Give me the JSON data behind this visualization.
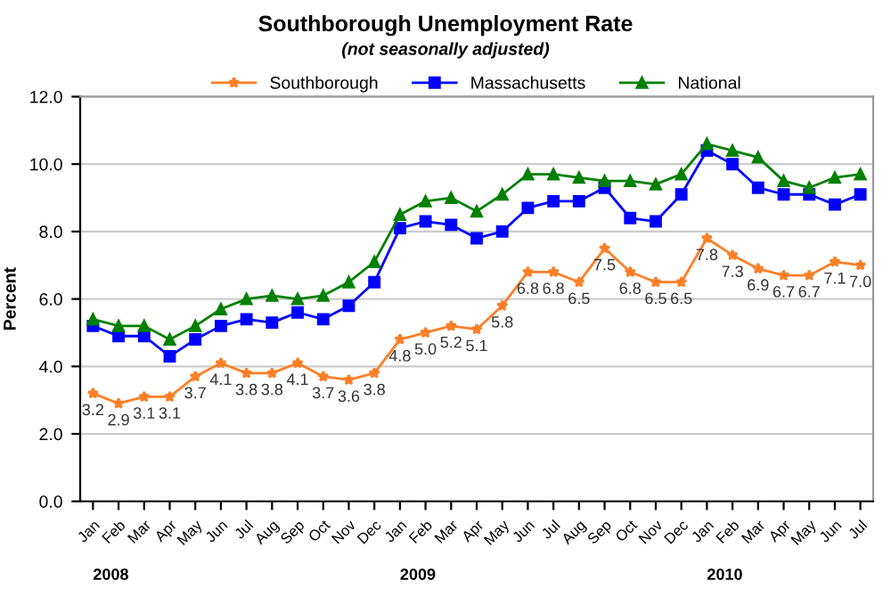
{
  "chart_data": {
    "type": "line",
    "title": "Southborough Unemployment Rate",
    "subtitle": "(not seasonally adjusted)",
    "ylabel": "Percent",
    "categories": [
      "Jan",
      "Feb",
      "Mar",
      "Apr",
      "May",
      "Jun",
      "Jul",
      "Aug",
      "Sep",
      "Oct",
      "Nov",
      "Dec",
      "Jan",
      "Feb",
      "Mar",
      "Apr",
      "May",
      "Jun",
      "Jul",
      "Aug",
      "Sep",
      "Oct",
      "Nov",
      "Dec",
      "Jan",
      "Feb",
      "Mar",
      "Apr",
      "May",
      "Jun",
      "Jul"
    ],
    "annotations": [
      "2008",
      "2009",
      "2010"
    ],
    "series": [
      {
        "name": "Southborough",
        "color": "#ff7f27",
        "marker": "star",
        "values": [
          3.2,
          2.9,
          3.1,
          3.1,
          3.7,
          4.1,
          3.8,
          3.8,
          4.1,
          3.7,
          3.6,
          3.8,
          4.8,
          5.0,
          5.2,
          5.1,
          5.8,
          6.8,
          6.8,
          6.5,
          7.5,
          6.8,
          6.5,
          6.5,
          7.8,
          7.3,
          6.9,
          6.7,
          6.7,
          7.1,
          7.0
        ],
        "value_labels": [
          "3.2",
          "2.9",
          "3.1",
          "3.1",
          "3.7",
          "4.1",
          "3.8",
          "3.8",
          "4.1",
          "3.7",
          "3.6",
          "3.8",
          "4.8",
          "5.0",
          "5.2",
          "5.1",
          "5.8",
          "6.8",
          "6.8",
          "6.5",
          "7.5",
          "6.8",
          "6.5",
          "6.5",
          "7.8",
          "7.3",
          "6.9",
          "6.7",
          "6.7",
          "7.1",
          "7.0"
        ]
      },
      {
        "name": "Massachusetts",
        "color": "#0000ff",
        "marker": "square",
        "values": [
          5.2,
          4.9,
          4.9,
          4.3,
          4.8,
          5.2,
          5.4,
          5.3,
          5.6,
          5.4,
          5.8,
          6.5,
          8.1,
          8.3,
          8.2,
          7.8,
          8.0,
          8.7,
          8.9,
          8.9,
          9.3,
          8.4,
          8.3,
          9.1,
          10.4,
          10.0,
          9.3,
          9.1,
          9.1,
          8.8,
          9.1
        ]
      },
      {
        "name": "National",
        "color": "#008000",
        "marker": "triangle",
        "values": [
          5.4,
          5.2,
          5.2,
          4.8,
          5.2,
          5.7,
          6.0,
          6.1,
          6.0,
          6.1,
          6.5,
          7.1,
          8.5,
          8.9,
          9.0,
          8.6,
          9.1,
          9.7,
          9.7,
          9.6,
          9.5,
          9.5,
          9.4,
          9.7,
          10.6,
          10.4,
          10.2,
          9.5,
          9.3,
          9.6,
          9.7
        ]
      }
    ],
    "ylim": [
      0,
      12
    ],
    "yticks": [
      {
        "value": 0,
        "label": "0.0"
      },
      {
        "value": 2,
        "label": "2.0"
      },
      {
        "value": 4,
        "label": "4.0"
      },
      {
        "value": 6,
        "label": "6.0"
      },
      {
        "value": 8,
        "label": "8.0"
      },
      {
        "value": 10,
        "label": "10.0"
      },
      {
        "value": 12,
        "label": "12.0"
      }
    ],
    "grid": "y",
    "legend": "top",
    "line_style": "solid"
  }
}
